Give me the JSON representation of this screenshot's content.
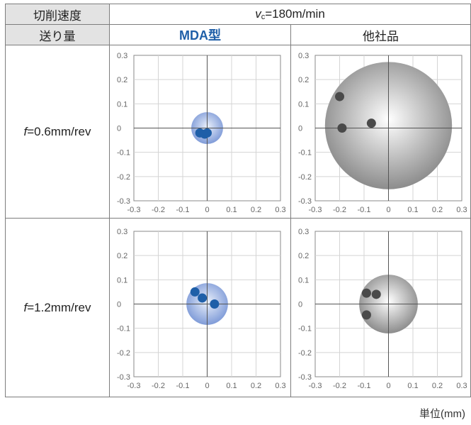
{
  "header": {
    "cutting_speed_label": "切削速度",
    "speed_value": "=180m/min",
    "speed_symbol": "v",
    "speed_sub": "c",
    "feed_label": "送り量",
    "col_mda": "MDA型",
    "col_other": "他社品"
  },
  "rows": [
    {
      "feed_symbol": "f",
      "feed_value": "=0.6mm/rev"
    },
    {
      "feed_symbol": "f",
      "feed_value": "=1.2mm/rev"
    }
  ],
  "unit_label": "単位(mm)",
  "colors": {
    "mda_point": "#1f5fa8",
    "other_point": "#4a4a4a",
    "mda_circle_center": "#eaf0fb",
    "mda_circle_edge": "#7f9bd8",
    "other_circle_center": "#ffffff",
    "other_circle_edge": "#8c8c8c"
  },
  "chart_data": [
    {
      "type": "scatter",
      "xlim": [
        -0.3,
        0.3
      ],
      "ylim": [
        -0.3,
        0.3
      ],
      "x_ticks": [
        "-0.3",
        "-0.2",
        "-0.1",
        "0",
        "0.1",
        "0.2",
        "0.3"
      ],
      "y_ticks": [
        "0.3",
        "0.2",
        "0.1",
        "0",
        "-0.1",
        "-0.2",
        "-0.3"
      ],
      "grid": true,
      "points": [
        [
          -0.03,
          -0.02
        ],
        [
          -0.01,
          -0.025
        ],
        [
          0.0,
          -0.02
        ]
      ],
      "circle": {
        "cx": 0.0,
        "cy": 0.0,
        "r": 0.065
      },
      "series": "mda"
    },
    {
      "type": "scatter",
      "xlim": [
        -0.3,
        0.3
      ],
      "ylim": [
        -0.3,
        0.3
      ],
      "x_ticks": [
        "-0.3",
        "-0.2",
        "-0.1",
        "0",
        "0.1",
        "0.2",
        "0.3"
      ],
      "y_ticks": [
        "0.3",
        "0.2",
        "0.1",
        "0",
        "-0.1",
        "-0.2",
        "-0.3"
      ],
      "grid": true,
      "points": [
        [
          -0.2,
          0.13
        ],
        [
          -0.19,
          0.0
        ],
        [
          -0.07,
          0.02
        ]
      ],
      "circle": {
        "cx": 0.0,
        "cy": 0.01,
        "r": 0.26
      },
      "series": "other"
    },
    {
      "type": "scatter",
      "xlim": [
        -0.3,
        0.3
      ],
      "ylim": [
        -0.3,
        0.3
      ],
      "x_ticks": [
        "-0.3",
        "-0.2",
        "-0.1",
        "0",
        "0.1",
        "0.2",
        "0.3"
      ],
      "y_ticks": [
        "0.3",
        "0.2",
        "0.1",
        "0",
        "-0.1",
        "-0.2",
        "-0.3"
      ],
      "grid": true,
      "points": [
        [
          -0.05,
          0.05
        ],
        [
          -0.02,
          0.025
        ],
        [
          0.03,
          0.0
        ]
      ],
      "circle": {
        "cx": 0.0,
        "cy": 0.0,
        "r": 0.085
      },
      "series": "mda"
    },
    {
      "type": "scatter",
      "xlim": [
        -0.3,
        0.3
      ],
      "ylim": [
        -0.3,
        0.3
      ],
      "x_ticks": [
        "-0.3",
        "-0.2",
        "-0.1",
        "0",
        "0.1",
        "0.2",
        "0.3"
      ],
      "y_ticks": [
        "0.3",
        "0.2",
        "0.1",
        "0",
        "-0.1",
        "-0.2",
        "-0.3"
      ],
      "grid": true,
      "points": [
        [
          -0.09,
          0.045
        ],
        [
          -0.05,
          0.04
        ],
        [
          -0.09,
          -0.045
        ]
      ],
      "circle": {
        "cx": 0.0,
        "cy": 0.0,
        "r": 0.12
      },
      "series": "other"
    }
  ]
}
